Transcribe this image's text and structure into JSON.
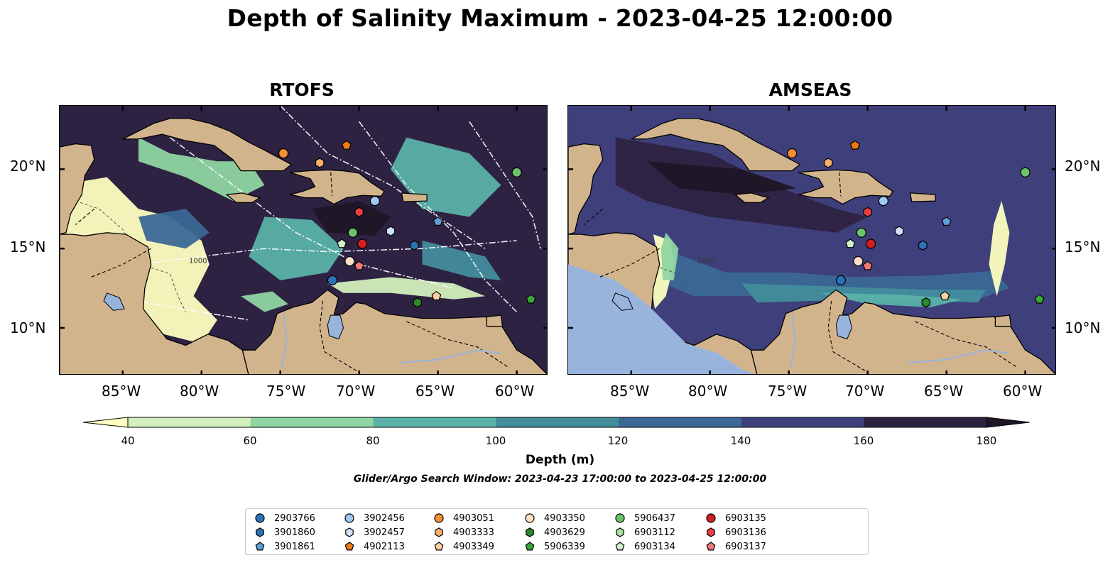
{
  "title": "Depth of Salinity Maximum - 2023-04-25 12:00:00",
  "panels": [
    {
      "title": "RTOFS",
      "field": "rtofs"
    },
    {
      "title": "AMSEAS",
      "field": "amseas"
    }
  ],
  "lat_labels": [
    "20°N",
    "15°N",
    "10°N"
  ],
  "lon_labels": [
    "85°W",
    "80°W",
    "75°W",
    "70°W",
    "65°W",
    "60°W"
  ],
  "colorbar": {
    "label": "Depth (m)",
    "ticks": [
      "40",
      "60",
      "80",
      "100",
      "120",
      "140",
      "160",
      "180"
    ],
    "colors": [
      "#fdfec0",
      "#d3efbd",
      "#8fd5a3",
      "#5ab2a8",
      "#428d9c",
      "#3b6895",
      "#3e3f7b",
      "#2e2243",
      "#1f1626"
    ],
    "extend": "both"
  },
  "search_window": "Glider/Argo Search Window: 2023-04-23 17:00:00 to 2023-04-25 12:00:00",
  "legend": [
    {
      "id": "2903766",
      "color": "#2a73b8",
      "shape": "circle"
    },
    {
      "id": "3901860",
      "color": "#2a73b8",
      "shape": "hexagon"
    },
    {
      "id": "3901861",
      "color": "#5d9fd6",
      "shape": "pentagon"
    },
    {
      "id": "3902456",
      "color": "#9ecaf0",
      "shape": "circle"
    },
    {
      "id": "3902457",
      "color": "#cfe3f7",
      "shape": "hexagon"
    },
    {
      "id": "4902113",
      "color": "#f07a12",
      "shape": "pentagon"
    },
    {
      "id": "4903051",
      "color": "#f58d33",
      "shape": "circle"
    },
    {
      "id": "4903333",
      "color": "#fbb06b",
      "shape": "hexagon"
    },
    {
      "id": "4903349",
      "color": "#fdd0a2",
      "shape": "pentagon"
    },
    {
      "id": "4903350",
      "color": "#fde0c5",
      "shape": "circle"
    },
    {
      "id": "4903629",
      "color": "#2b8a2b",
      "shape": "hexagon"
    },
    {
      "id": "5906339",
      "color": "#3aa63a",
      "shape": "pentagon"
    },
    {
      "id": "5906437",
      "color": "#6cc36c",
      "shape": "circle"
    },
    {
      "id": "6903112",
      "color": "#a9e0a2",
      "shape": "hexagon"
    },
    {
      "id": "6903134",
      "color": "#d1f2cb",
      "shape": "pentagon"
    },
    {
      "id": "6903135",
      "color": "#d21f1f",
      "shape": "circle"
    },
    {
      "id": "6903136",
      "color": "#e84040",
      "shape": "hexagon"
    },
    {
      "id": "6903137",
      "color": "#f07878",
      "shape": "pentagon"
    }
  ],
  "chart_data": [
    {
      "type": "heatmap",
      "title": "RTOFS",
      "xlabel": "",
      "ylabel": "",
      "xlim": [
        -89,
        -58
      ],
      "ylim": [
        7,
        24
      ],
      "colorbar_label": "Depth (m)",
      "levels": [
        40,
        60,
        80,
        100,
        120,
        140,
        160,
        180
      ],
      "contour_labels": [
        "1000"
      ],
      "points": [
        {
          "id": "4903051",
          "lon": -74.8,
          "lat": 21.0
        },
        {
          "id": "4902113",
          "lon": -70.8,
          "lat": 21.5
        },
        {
          "id": "4903333",
          "lon": -72.5,
          "lat": 20.4
        },
        {
          "id": "5906437",
          "lon": -60.0,
          "lat": 19.8
        },
        {
          "id": "3902456",
          "lon": -69.0,
          "lat": 18.0
        },
        {
          "id": "6903136",
          "lon": -70.0,
          "lat": 17.3
        },
        {
          "id": "3901861",
          "lon": -65.0,
          "lat": 16.7
        },
        {
          "id": "3902457",
          "lon": -68.0,
          "lat": 16.1
        },
        {
          "id": "5906437b",
          "lon": -70.4,
          "lat": 16.0
        },
        {
          "id": "6903134",
          "lon": -71.1,
          "lat": 15.3
        },
        {
          "id": "6903135",
          "lon": -69.8,
          "lat": 15.3
        },
        {
          "id": "3901860",
          "lon": -66.5,
          "lat": 15.2
        },
        {
          "id": "4903350",
          "lon": -70.6,
          "lat": 14.2
        },
        {
          "id": "6903137",
          "lon": -70.0,
          "lat": 13.9
        },
        {
          "id": "2903766",
          "lon": -71.7,
          "lat": 13.0
        },
        {
          "id": "4903349",
          "lon": -65.1,
          "lat": 12.0
        },
        {
          "id": "4903629",
          "lon": -66.3,
          "lat": 11.6
        },
        {
          "id": "5906339",
          "lon": -59.1,
          "lat": 11.8
        }
      ]
    },
    {
      "type": "heatmap",
      "title": "AMSEAS",
      "xlabel": "",
      "ylabel": "",
      "xlim": [
        -89,
        -58
      ],
      "ylim": [
        7,
        24
      ],
      "colorbar_label": "Depth (m)",
      "levels": [
        40,
        60,
        80,
        100,
        120,
        140,
        160,
        180
      ],
      "contour_labels": [
        "1000"
      ],
      "points": [
        {
          "id": "4903051",
          "lon": -74.8,
          "lat": 21.0
        },
        {
          "id": "4902113",
          "lon": -70.8,
          "lat": 21.5
        },
        {
          "id": "4903333",
          "lon": -72.5,
          "lat": 20.4
        },
        {
          "id": "5906437",
          "lon": -60.0,
          "lat": 19.8
        },
        {
          "id": "3902456",
          "lon": -69.0,
          "lat": 18.0
        },
        {
          "id": "6903136",
          "lon": -70.0,
          "lat": 17.3
        },
        {
          "id": "3901861",
          "lon": -65.0,
          "lat": 16.7
        },
        {
          "id": "3902457",
          "lon": -68.0,
          "lat": 16.1
        },
        {
          "id": "5906437b",
          "lon": -70.4,
          "lat": 16.0
        },
        {
          "id": "6903134",
          "lon": -71.1,
          "lat": 15.3
        },
        {
          "id": "6903135",
          "lon": -69.8,
          "lat": 15.3
        },
        {
          "id": "3901860",
          "lon": -66.5,
          "lat": 15.2
        },
        {
          "id": "4903350",
          "lon": -70.6,
          "lat": 14.2
        },
        {
          "id": "6903137",
          "lon": -70.0,
          "lat": 13.9
        },
        {
          "id": "2903766",
          "lon": -71.7,
          "lat": 13.0
        },
        {
          "id": "4903349",
          "lon": -65.1,
          "lat": 12.0
        },
        {
          "id": "4903629",
          "lon": -66.3,
          "lat": 11.6
        },
        {
          "id": "5906339",
          "lon": -59.1,
          "lat": 11.8
        }
      ]
    }
  ]
}
